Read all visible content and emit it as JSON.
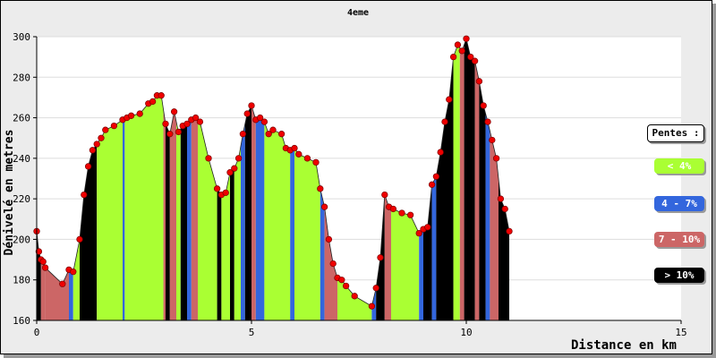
{
  "chart_data": {
    "type": "area",
    "title": "4eme",
    "xlabel": "Distance en km",
    "ylabel": "Dénivelé en metres",
    "xlim": [
      0,
      15
    ],
    "ylim": [
      160,
      300
    ],
    "x_ticks": [
      "0",
      "5",
      "10",
      "15"
    ],
    "y_ticks": [
      "160",
      "180",
      "200",
      "220",
      "240",
      "260",
      "280",
      "300"
    ],
    "legend": {
      "title": "Pentes :",
      "items": [
        {
          "label": "< 4%",
          "color": "#aaff33"
        },
        {
          "label": "4 - 7%",
          "color": "#3366dd"
        },
        {
          "label": "7 - 10%",
          "color": "#cc6666"
        },
        {
          "label": "> 10%",
          "color": "#000000"
        }
      ]
    },
    "profile": {
      "x": [
        0.0,
        0.05,
        0.1,
        0.15,
        0.2,
        0.6,
        0.75,
        0.85,
        1.0,
        1.1,
        1.2,
        1.3,
        1.4,
        1.5,
        1.6,
        1.8,
        2.0,
        2.1,
        2.2,
        2.4,
        2.6,
        2.7,
        2.8,
        2.9,
        3.0,
        3.1,
        3.2,
        3.3,
        3.4,
        3.5,
        3.6,
        3.7,
        3.8,
        4.0,
        4.2,
        4.3,
        4.4,
        4.5,
        4.6,
        4.7,
        4.8,
        4.9,
        5.0,
        5.1,
        5.2,
        5.3,
        5.4,
        5.5,
        5.7,
        5.8,
        5.9,
        6.0,
        6.1,
        6.3,
        6.5,
        6.6,
        6.7,
        6.8,
        6.9,
        7.0,
        7.1,
        7.2,
        7.4,
        7.8,
        7.9,
        8.0,
        8.1,
        8.2,
        8.3,
        8.5,
        8.7,
        8.9,
        9.0,
        9.1,
        9.2,
        9.3,
        9.4,
        9.5,
        9.6,
        9.7,
        9.8,
        9.9,
        10.0,
        10.1,
        10.2,
        10.3,
        10.4,
        10.5,
        10.6,
        10.7,
        10.8,
        10.9,
        11.0
      ],
      "y": [
        204,
        194,
        190,
        189,
        186,
        178,
        185,
        184,
        200,
        222,
        236,
        244,
        247,
        250,
        254,
        256,
        259,
        260,
        261,
        262,
        267,
        268,
        271,
        271,
        257,
        252,
        263,
        253,
        256,
        257,
        259,
        260,
        258,
        240,
        225,
        222,
        223,
        233,
        235,
        240,
        252,
        262,
        266,
        259,
        260,
        258,
        252,
        254,
        252,
        245,
        244,
        245,
        242,
        240,
        238,
        225,
        216,
        200,
        188,
        181,
        180,
        177,
        172,
        167,
        176,
        191,
        222,
        216,
        215,
        213,
        212,
        203,
        205,
        206,
        227,
        231,
        243,
        258,
        269,
        290,
        296,
        293,
        299,
        290,
        288,
        278,
        266,
        258,
        249,
        240,
        220,
        215,
        204
      ],
      "segments": [
        {
          "x0": 0.0,
          "x1": 0.1,
          "cls": "black"
        },
        {
          "x0": 0.1,
          "x1": 0.2,
          "cls": "red"
        },
        {
          "x0": 0.2,
          "x1": 0.75,
          "cls": "red"
        },
        {
          "x0": 0.75,
          "x1": 0.85,
          "cls": "blue"
        },
        {
          "x0": 0.85,
          "x1": 1.0,
          "cls": "green"
        },
        {
          "x0": 1.0,
          "x1": 1.4,
          "cls": "black"
        },
        {
          "x0": 1.4,
          "x1": 2.0,
          "cls": "green"
        },
        {
          "x0": 2.0,
          "x1": 2.05,
          "cls": "blue"
        },
        {
          "x0": 2.05,
          "x1": 2.95,
          "cls": "green"
        },
        {
          "x0": 2.95,
          "x1": 3.0,
          "cls": "red"
        },
        {
          "x0": 3.0,
          "x1": 3.1,
          "cls": "black"
        },
        {
          "x0": 3.1,
          "x1": 3.25,
          "cls": "red"
        },
        {
          "x0": 3.25,
          "x1": 3.35,
          "cls": "green"
        },
        {
          "x0": 3.35,
          "x1": 3.5,
          "cls": "black"
        },
        {
          "x0": 3.5,
          "x1": 3.6,
          "cls": "blue"
        },
        {
          "x0": 3.6,
          "x1": 3.75,
          "cls": "red"
        },
        {
          "x0": 3.75,
          "x1": 4.2,
          "cls": "green"
        },
        {
          "x0": 4.2,
          "x1": 4.3,
          "cls": "black"
        },
        {
          "x0": 4.3,
          "x1": 4.5,
          "cls": "green"
        },
        {
          "x0": 4.5,
          "x1": 4.6,
          "cls": "black"
        },
        {
          "x0": 4.6,
          "x1": 4.75,
          "cls": "green"
        },
        {
          "x0": 4.75,
          "x1": 4.85,
          "cls": "blue"
        },
        {
          "x0": 4.85,
          "x1": 5.0,
          "cls": "black"
        },
        {
          "x0": 5.0,
          "x1": 5.1,
          "cls": "red"
        },
        {
          "x0": 5.1,
          "x1": 5.3,
          "cls": "blue"
        },
        {
          "x0": 5.3,
          "x1": 5.9,
          "cls": "green"
        },
        {
          "x0": 5.9,
          "x1": 6.0,
          "cls": "blue"
        },
        {
          "x0": 6.0,
          "x1": 6.6,
          "cls": "green"
        },
        {
          "x0": 6.6,
          "x1": 6.7,
          "cls": "blue"
        },
        {
          "x0": 6.7,
          "x1": 7.0,
          "cls": "red"
        },
        {
          "x0": 7.0,
          "x1": 7.8,
          "cls": "green"
        },
        {
          "x0": 7.8,
          "x1": 7.9,
          "cls": "blue"
        },
        {
          "x0": 7.9,
          "x1": 8.1,
          "cls": "black"
        },
        {
          "x0": 8.1,
          "x1": 8.25,
          "cls": "red"
        },
        {
          "x0": 8.25,
          "x1": 8.9,
          "cls": "green"
        },
        {
          "x0": 8.9,
          "x1": 9.0,
          "cls": "blue"
        },
        {
          "x0": 9.0,
          "x1": 9.2,
          "cls": "black"
        },
        {
          "x0": 9.2,
          "x1": 9.3,
          "cls": "blue"
        },
        {
          "x0": 9.3,
          "x1": 9.7,
          "cls": "black"
        },
        {
          "x0": 9.7,
          "x1": 9.85,
          "cls": "green"
        },
        {
          "x0": 9.85,
          "x1": 9.95,
          "cls": "red"
        },
        {
          "x0": 9.95,
          "x1": 10.2,
          "cls": "black"
        },
        {
          "x0": 10.2,
          "x1": 10.3,
          "cls": "red"
        },
        {
          "x0": 10.3,
          "x1": 10.45,
          "cls": "black"
        },
        {
          "x0": 10.45,
          "x1": 10.55,
          "cls": "blue"
        },
        {
          "x0": 10.55,
          "x1": 10.75,
          "cls": "red"
        },
        {
          "x0": 10.75,
          "x1": 11.0,
          "cls": "black"
        }
      ]
    },
    "grid": true
  }
}
